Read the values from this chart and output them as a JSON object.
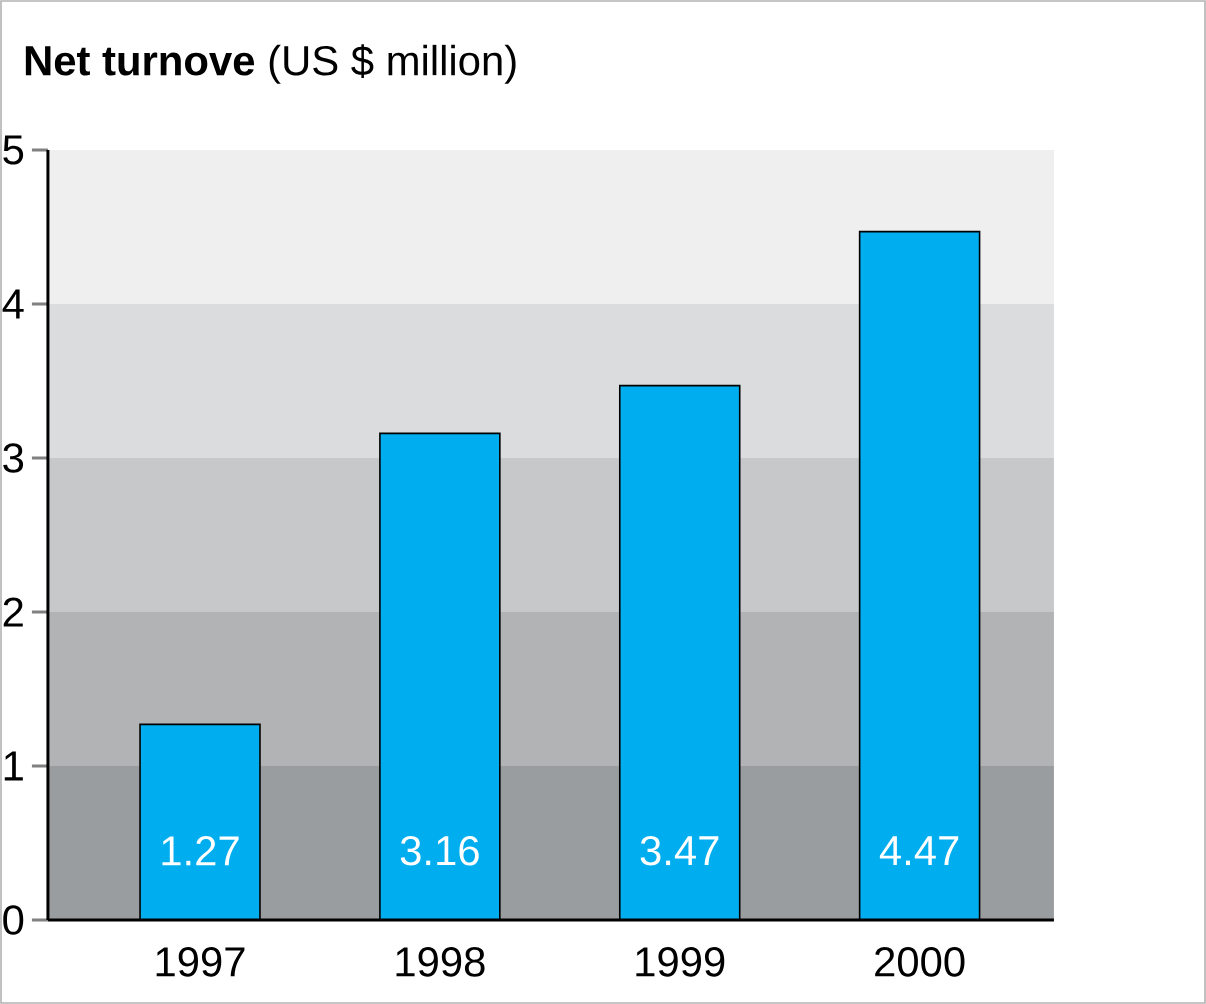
{
  "chart_data": {
    "type": "bar",
    "title": "**Net turnove** (US $ million)",
    "categories": [
      "1997",
      "1998",
      "1999",
      "2000"
    ],
    "values": [
      1.27,
      3.16,
      3.47,
      4.47
    ],
    "color": "#00aeef",
    "ylim": [
      0,
      5
    ],
    "yticks": [
      0,
      1,
      2,
      3,
      4,
      5
    ],
    "data_labels": true,
    "bands": [
      {
        "axis": "y",
        "from": 0,
        "to": 1,
        "color": "#9a9d9f"
      },
      {
        "axis": "y",
        "from": 1,
        "to": 2,
        "color": "#b1b3b5"
      },
      {
        "axis": "y",
        "from": 2,
        "to": 3,
        "color": "#c6c8ca"
      },
      {
        "axis": "y",
        "from": 3,
        "to": 4,
        "color": "#dbdcdd"
      },
      {
        "axis": "y",
        "from": 4,
        "to": 5,
        "color": "#efefef"
      }
    ]
  }
}
